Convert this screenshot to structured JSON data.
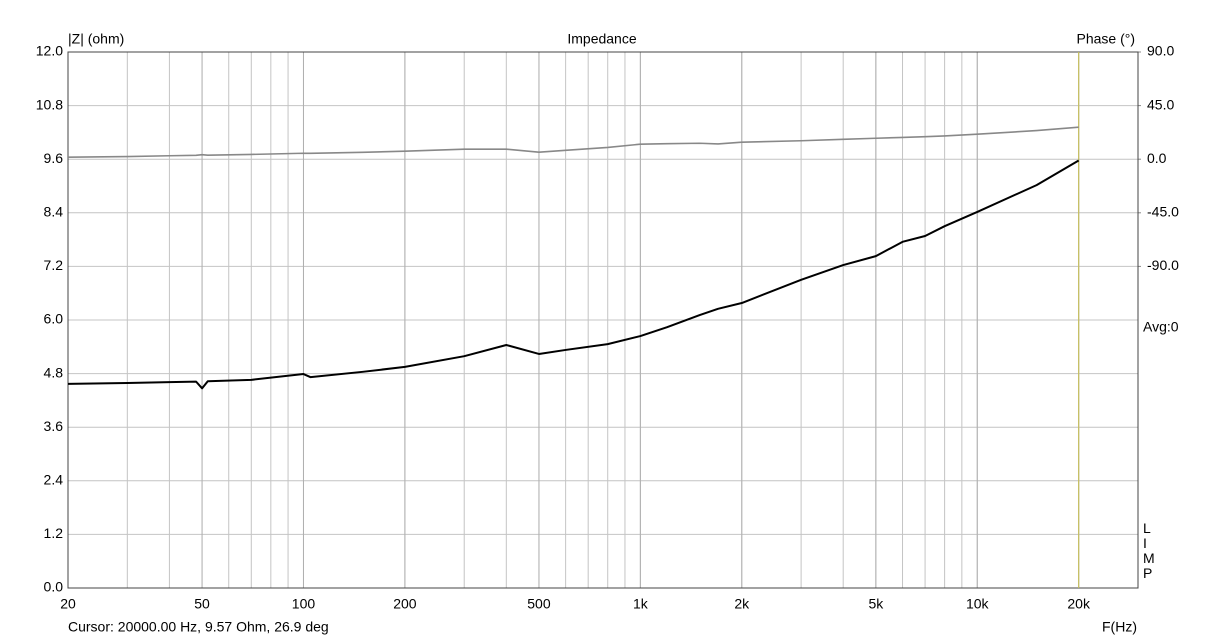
{
  "chart_data": {
    "type": "line",
    "title": "Impedance",
    "y_label": "|Z| (ohm)",
    "y2_label": "Phase (°)",
    "x_label": "F(Hz)",
    "avg_label": "Avg:0",
    "side_label": "LIMP",
    "cursor": {
      "x": 20000,
      "label": "Cursor: 20000.00 Hz, 9.57 Ohm, 26.9 deg",
      "color": "#c8c060"
    },
    "log_x": true,
    "grid": true,
    "xlim": [
      20,
      30000
    ],
    "xticks": [
      20,
      50,
      100,
      200,
      500,
      {
        "value": 1000,
        "label": "1k"
      },
      {
        "value": 2000,
        "label": "2k"
      },
      {
        "value": 5000,
        "label": "5k"
      },
      {
        "value": 10000,
        "label": "10k"
      },
      {
        "value": 20000,
        "label": "20k"
      }
    ],
    "ylim": [
      0,
      12
    ],
    "yticks": [
      {
        "value": 0,
        "label": "0.0"
      },
      1.2,
      2.4,
      3.6,
      4.8,
      {
        "value": 6,
        "label": "6.0"
      },
      7.2,
      8.4,
      9.6,
      10.8,
      {
        "value": 12,
        "label": "12.0"
      }
    ],
    "y2lim": [
      -360,
      90
    ],
    "y2ticks": [
      {
        "value": 90,
        "label": "90.0"
      },
      {
        "value": 45,
        "label": "45.0"
      },
      {
        "value": 0,
        "label": "0.0"
      },
      {
        "value": -45,
        "label": "-45.0"
      },
      {
        "value": -90,
        "label": "-90.0"
      }
    ],
    "x": [
      20,
      30,
      40,
      48,
      50,
      52,
      70,
      100,
      105,
      150,
      200,
      300,
      400,
      500,
      600,
      800,
      1000,
      1200,
      1500,
      1700,
      2000,
      3000,
      4000,
      5000,
      6000,
      7000,
      8000,
      10000,
      15000,
      20000
    ],
    "series": [
      {
        "color": "#000000",
        "values": [
          4.57,
          4.59,
          4.61,
          4.62,
          4.47,
          4.63,
          4.66,
          4.79,
          4.72,
          4.84,
          4.95,
          5.19,
          5.44,
          5.24,
          5.33,
          5.46,
          5.64,
          5.84,
          6.11,
          6.25,
          6.38,
          6.9,
          7.23,
          7.43,
          7.75,
          7.88,
          8.1,
          8.42,
          9.02,
          9.57
        ]
      },
      {
        "color": "#888888",
        "axis": "y2",
        "values": [
          1.7,
          2.2,
          2.9,
          3.3,
          3.8,
          3.4,
          4.0,
          5.0,
          4.9,
          5.8,
          6.7,
          8.4,
          8.4,
          5.9,
          7.5,
          9.9,
          12.6,
          13.0,
          13.4,
          12.8,
          14.3,
          15.5,
          16.7,
          17.6,
          18.3,
          18.9,
          19.5,
          21.0,
          24.0,
          26.9
        ]
      }
    ]
  }
}
